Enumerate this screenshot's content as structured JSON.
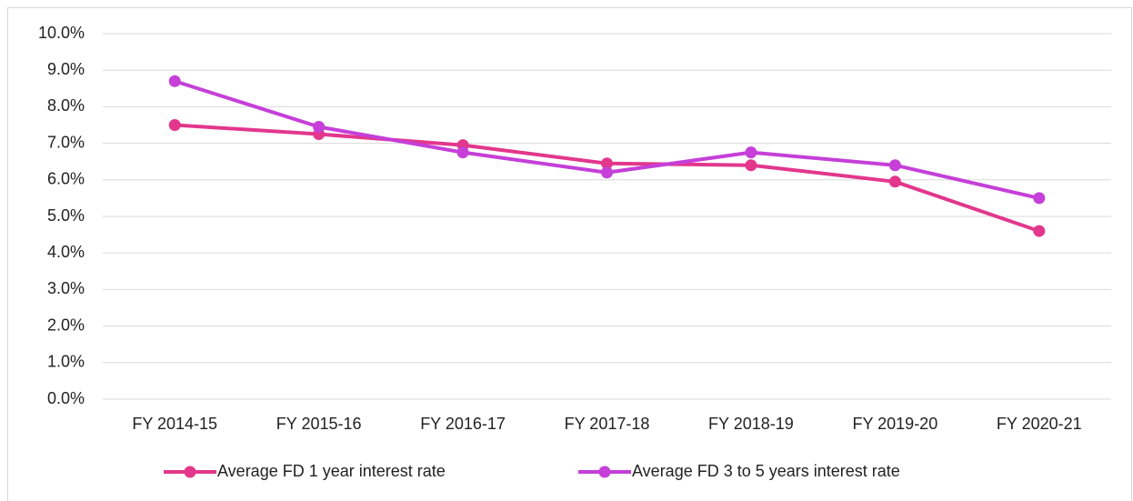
{
  "chart_data": {
    "type": "line",
    "categories": [
      "FY 2014-15",
      "FY 2015-16",
      "FY 2016-17",
      "FY 2017-18",
      "FY 2018-19",
      "FY 2019-20",
      "FY 2020-21"
    ],
    "series": [
      {
        "name": "Average FD 1 year interest rate",
        "color": "#e2378c",
        "values": [
          7.5,
          7.25,
          6.95,
          6.45,
          6.4,
          5.95,
          4.6
        ]
      },
      {
        "name": "Average FD 3 to 5 years interest rate",
        "color": "#c53fd8",
        "values": [
          8.7,
          7.45,
          6.75,
          6.2,
          6.75,
          6.4,
          5.5
        ]
      }
    ],
    "ylim": [
      0,
      10
    ],
    "yticks": [
      {
        "value": 0,
        "label": "0.0%"
      },
      {
        "value": 1,
        "label": "1.0%"
      },
      {
        "value": 2,
        "label": "2.0%"
      },
      {
        "value": 3,
        "label": "3.0%"
      },
      {
        "value": 4,
        "label": "4.0%"
      },
      {
        "value": 5,
        "label": "5.0%"
      },
      {
        "value": 6,
        "label": "6.0%"
      },
      {
        "value": 7,
        "label": "7.0%"
      },
      {
        "value": 8,
        "label": "8.0%"
      },
      {
        "value": 9,
        "label": "9.0%"
      },
      {
        "value": 10,
        "label": "10.0%"
      }
    ],
    "grid": true,
    "legend": "bottom"
  }
}
